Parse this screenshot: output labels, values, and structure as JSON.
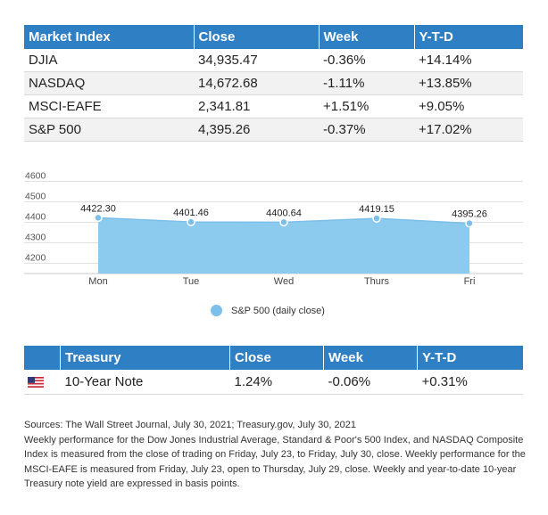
{
  "market_table": {
    "headers": [
      "Market Index",
      "Close",
      "Week",
      "Y-T-D"
    ],
    "rows": [
      [
        "DJIA",
        "34,935.47",
        "-0.36%",
        "+14.14%"
      ],
      [
        "NASDAQ",
        "14,672.68",
        "-1.11%",
        "+13.85%"
      ],
      [
        "MSCI-EAFE",
        "2,341.81",
        "+1.51%",
        "+9.05%"
      ],
      [
        "S&P 500",
        "4,395.26",
        "-0.37%",
        "+17.02%"
      ]
    ]
  },
  "chart_data": {
    "type": "area",
    "categories": [
      "Mon",
      "Tue",
      "Wed",
      "Thurs",
      "Fri"
    ],
    "series": [
      {
        "name": "S&P 500 (daily close)",
        "values": [
          4422.3,
          4401.46,
          4400.64,
          4419.15,
          4395.26
        ]
      }
    ],
    "data_labels": [
      "4422.30",
      "4401.46",
      "4400.64",
      "4419.15",
      "4395.26"
    ],
    "yticks": [
      4200,
      4300,
      4400,
      4500,
      4600
    ],
    "ylim": [
      4150,
      4650
    ],
    "title": "",
    "xlabel": "",
    "ylabel": "",
    "grid": true,
    "legend": "bottom",
    "colors": {
      "fill": "#8ccbee",
      "line": "#7bbfea",
      "grid": "#e0e0e0"
    }
  },
  "legend": {
    "label": "S&P 500 (daily close)"
  },
  "treasury_table": {
    "headers": [
      "",
      "Treasury",
      "Close",
      "Week",
      "Y-T-D"
    ],
    "flag_icon": "us-flag-icon",
    "row": [
      "10-Year Note",
      "1.24%",
      "-0.06%",
      "+0.31%"
    ]
  },
  "notes": [
    "Sources: The Wall Street Journal, July 30, 2021; Treasury.gov, July 30, 2021",
    "Weekly performance for the Dow Jones Industrial Average, Standard & Poor's 500 Index, and NASDAQ Composite Index is measured from the close of trading on Friday, July 23, to Friday, July 30, close. Weekly performance for the MSCI-EAFE is measured from Friday, July 23, open to Thursday, July 29, close. Weekly and year-to-date 10-year Treasury note yield are expressed in basis points."
  ],
  "colors": {
    "header_bg": "#2f7fc4",
    "header_text": "#ffffff",
    "stripe": "#f2f2f2"
  }
}
